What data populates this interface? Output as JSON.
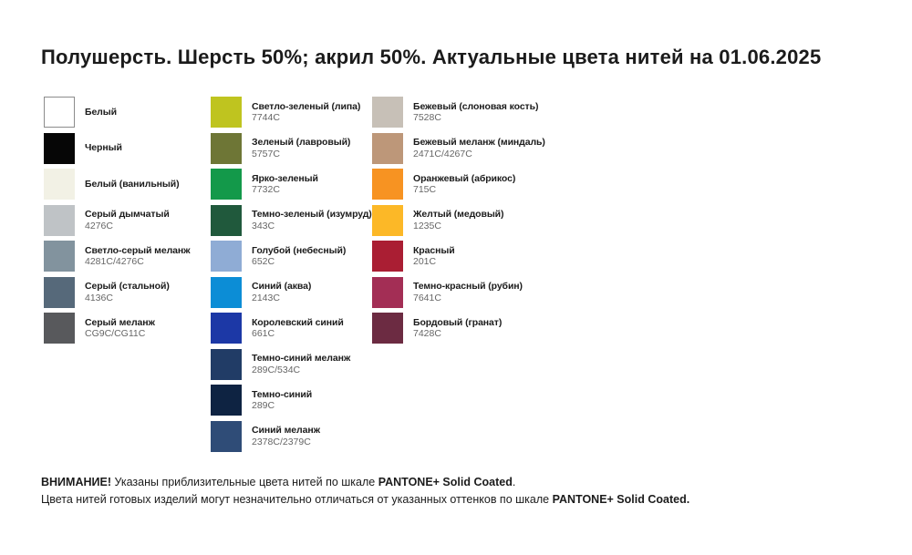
{
  "title": "Полушерсть. Шерсть 50%; акрил 50%. Актуальные цвета нитей на 01.06.2025",
  "columns": [
    {
      "items": [
        {
          "name": "Белый",
          "color": "#ffffff"
        },
        {
          "name": "Черный",
          "color": "#060606"
        },
        {
          "name": "Белый (ванильный)",
          "color": "#f2f1e5"
        },
        {
          "name": "Серый дымчатый",
          "code": "4276C",
          "color": "#bfc3c6"
        },
        {
          "name": "Светло-серый меланж",
          "code": "4281C/4276C",
          "color": "#82939e"
        },
        {
          "name": "Серый (стальной)",
          "code": "4136C",
          "color": "#56697a"
        },
        {
          "name": "Серый меланж",
          "code": "CG9C/CG11C",
          "color": "#58595c"
        }
      ]
    },
    {
      "items": [
        {
          "name": "Светло-зеленый (липа)",
          "code": "7744C",
          "color": "#bfc41f"
        },
        {
          "name": "Зеленый (лавровый)",
          "code": "5757C",
          "color": "#6e7636"
        },
        {
          "name": "Ярко-зеленый",
          "code": "7732C",
          "color": "#13994a"
        },
        {
          "name": "Темно-зеленый (изумруд)",
          "code": "343C",
          "color": "#20593c"
        },
        {
          "name": "Голубой (небесный)",
          "code": "652C",
          "color": "#8facd5"
        },
        {
          "name": "Синий (аква)",
          "code": "2143C",
          "color": "#0c8dd6"
        },
        {
          "name": "Королевский синий",
          "code": "661C",
          "color": "#1c38a6"
        },
        {
          "name": "Темно-синий меланж",
          "code": "289C/534C",
          "color": "#213c66"
        },
        {
          "name": "Темно-синий",
          "code": "289C",
          "color": "#0e2342"
        },
        {
          "name": "Синий меланж",
          "code": "2378C/2379C",
          "color": "#2f4c77"
        }
      ]
    },
    {
      "items": [
        {
          "name": "Бежевый (слоновая кость)",
          "code": "7528C",
          "color": "#c7c0b7"
        },
        {
          "name": "Бежевый меланж (миндаль)",
          "code": "2471C/4267C",
          "color": "#bd9779"
        },
        {
          "name": "Оранжевый (абрикос)",
          "code": "715C",
          "color": "#f79322"
        },
        {
          "name": "Желтый (медовый)",
          "code": "1235C",
          "color": "#fcb827"
        },
        {
          "name": "Красный",
          "code": "201C",
          "color": "#aa1e33"
        },
        {
          "name": "Темно-красный (рубин)",
          "code": "7641C",
          "color": "#a32e55"
        },
        {
          "name": "Бордовый (гранат)",
          "code": "7428C",
          "color": "#6c2b42"
        }
      ]
    }
  ],
  "footer": {
    "warning": "ВНИМАНИЕ!",
    "line1_text": " Указаны приблизительные цвета нитей по шкале ",
    "line1_pantone": "PANTONE+ Solid Coated",
    "line1_period": ".",
    "line2_text": "Цвета нитей готовых изделий могут незначительно отличаться от указанных оттенков по шкале ",
    "line2_pantone": "PANTONE+ Solid Coated."
  },
  "colors": {
    "swatch_border": "#8c8c8c",
    "text_primary": "#1b1b1b",
    "code_gray": "#666666"
  }
}
